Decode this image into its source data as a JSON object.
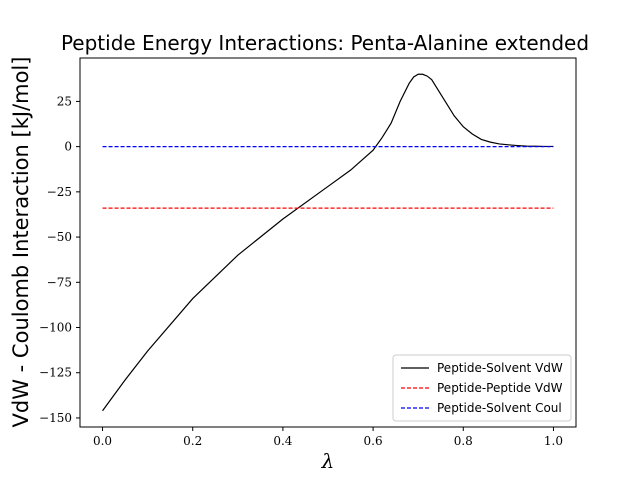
{
  "chart_data": {
    "type": "line",
    "title": "Peptide Energy Interactions: Penta-Alanine extended",
    "xlabel": "λ",
    "ylabel": "VdW - Coulomb Interaction [kJ/mol]",
    "xlim": [
      -0.05,
      1.05
    ],
    "ylim": [
      -155,
      49
    ],
    "xticks": [
      0.0,
      0.2,
      0.4,
      0.6,
      0.8,
      1.0
    ],
    "xtick_labels": [
      "0.0",
      "0.2",
      "0.4",
      "0.6",
      "0.8",
      "1.0"
    ],
    "yticks": [
      -150,
      -125,
      -100,
      -75,
      -50,
      -25,
      0,
      25
    ],
    "ytick_labels": [
      "−150",
      "−125",
      "−100",
      "−75",
      "−50",
      "−25",
      "0",
      "25"
    ],
    "grid": false,
    "legend_position": "bottom-right",
    "series": [
      {
        "name": "Peptide-Solvent VdW",
        "color": "#000000",
        "style": "solid",
        "x": [
          0.0,
          0.05,
          0.1,
          0.2,
          0.3,
          0.4,
          0.5,
          0.55,
          0.6,
          0.62,
          0.64,
          0.66,
          0.68,
          0.69,
          0.7,
          0.71,
          0.72,
          0.73,
          0.74,
          0.76,
          0.78,
          0.8,
          0.82,
          0.84,
          0.86,
          0.88,
          0.9,
          0.92,
          0.94,
          0.96,
          0.98,
          1.0
        ],
        "values": [
          -146,
          -129,
          -113,
          -84,
          -60,
          -40,
          -22,
          -13,
          -2,
          5,
          13,
          25,
          35,
          38.5,
          40,
          40,
          39,
          37,
          33,
          25,
          17,
          11,
          7,
          4,
          2.5,
          1.5,
          1,
          0.6,
          0.3,
          0.2,
          0.1,
          0.1
        ]
      },
      {
        "name": "Peptide-Peptide VdW",
        "color": "#ff0000",
        "style": "dashed",
        "x": [
          0.0,
          1.0
        ],
        "values": [
          -34,
          -34
        ]
      },
      {
        "name": "Peptide-Solvent Coul",
        "color": "#0000ff",
        "style": "dashed",
        "x": [
          0.0,
          1.0
        ],
        "values": [
          0,
          0
        ]
      }
    ]
  }
}
